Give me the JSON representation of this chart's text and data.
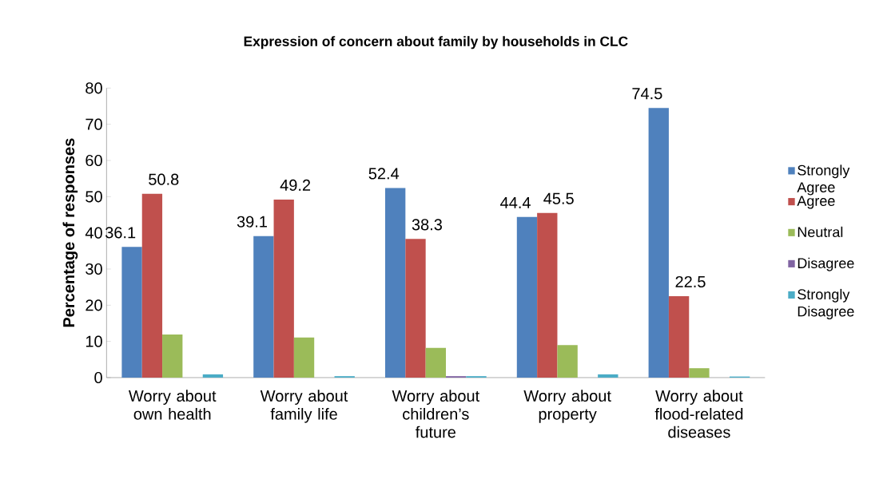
{
  "chart_data": {
    "type": "bar",
    "title": "Expression of concern about family by households in CLC",
    "ylabel": "Percentage of responses",
    "categories": [
      "Worry about own health",
      "Worry about family life",
      "Worry about children’s future",
      "Worry about property",
      "Worry about flood-related diseases"
    ],
    "series": [
      {
        "name": "Strongly Agree",
        "color": "#4f81bd",
        "values": [
          36.1,
          39.1,
          52.4,
          44.4,
          74.5
        ],
        "value_labels": [
          "36.1",
          "39.1",
          "52.4",
          "44.4",
          "74.5"
        ]
      },
      {
        "name": "Agree",
        "color": "#c0504d",
        "values": [
          50.8,
          49.2,
          38.3,
          45.5,
          22.5
        ],
        "value_labels": [
          "50.8",
          "49.2",
          "38.3",
          "45.5",
          "22.5"
        ]
      },
      {
        "name": "Neutral",
        "color": "#9bbb59",
        "values": [
          11.9,
          11.1,
          8.2,
          9.0,
          2.6
        ]
      },
      {
        "name": "Disagree",
        "color": "#8064a2",
        "values": [
          0,
          0,
          0.4,
          0,
          0
        ]
      },
      {
        "name": "Strongly Disagree",
        "color": "#4bacc6",
        "values": [
          0.9,
          0.4,
          0.4,
          0.9,
          0.3
        ]
      }
    ],
    "ylim": [
      0,
      80
    ],
    "yticks": [
      0,
      10,
      20,
      30,
      40,
      50,
      60,
      70,
      80
    ],
    "legend": "right",
    "grid": false
  }
}
